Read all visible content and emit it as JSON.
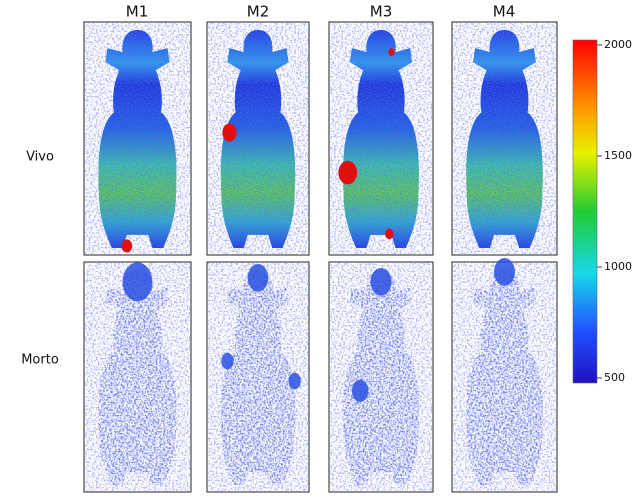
{
  "columns": [
    "M1",
    "M2",
    "M3",
    "M4"
  ],
  "rows": [
    "Vivo",
    "Morto"
  ],
  "colorbar": {
    "lim": [
      500,
      2000
    ],
    "ticks": [
      500,
      1000,
      1500,
      2000
    ]
  }
}
